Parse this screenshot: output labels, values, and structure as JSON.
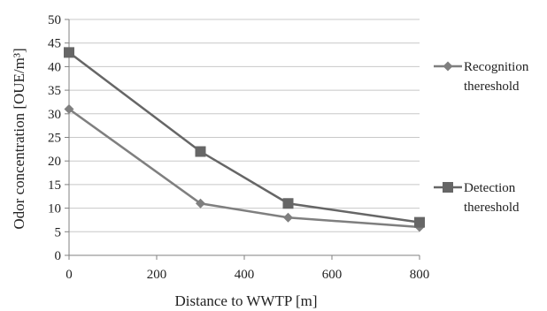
{
  "chart_data": {
    "type": "line",
    "title": "",
    "xlabel": "Distance to WWTP [m]",
    "ylabel": "Odor concentration [OUE/m³]",
    "xlim": [
      0,
      800
    ],
    "ylim": [
      0,
      50
    ],
    "x_ticks": [
      0,
      200,
      400,
      600,
      800
    ],
    "y_ticks": [
      0,
      5,
      10,
      15,
      20,
      25,
      30,
      35,
      40,
      45,
      50
    ],
    "grid": "horizontal",
    "legend_position": "right",
    "series": [
      {
        "name_lines": [
          "Recognition",
          "thereshold"
        ],
        "marker": "diamond",
        "color": "#7f7f7f",
        "x": [
          0,
          300,
          500,
          800
        ],
        "y": [
          31,
          11,
          8,
          6
        ]
      },
      {
        "name_lines": [
          "Detection",
          "thereshold"
        ],
        "marker": "square",
        "color": "#666666",
        "x": [
          0,
          300,
          500,
          800
        ],
        "y": [
          43,
          22,
          11,
          7
        ]
      }
    ]
  }
}
